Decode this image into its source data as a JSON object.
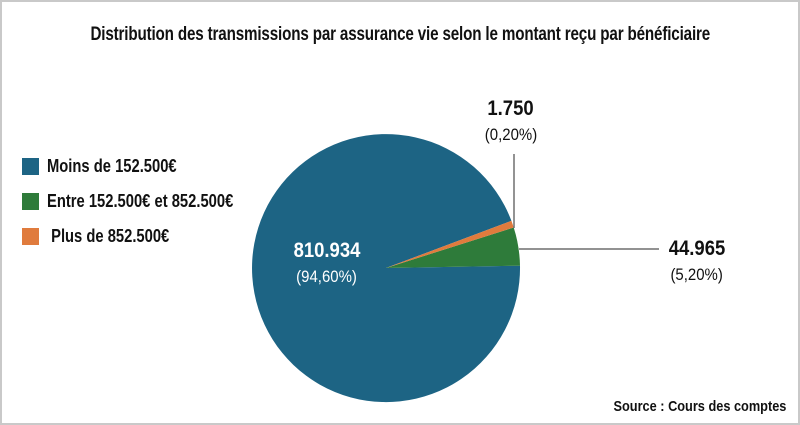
{
  "title": "Distribution des transmissions par assurance vie selon le montant reçu par bénéficiaire",
  "legend": {
    "items": [
      {
        "label": "Moins de 152.500€",
        "color": "#1d6484"
      },
      {
        "label": "Entre 152.500€ et 852.500€",
        "color": "#2e7b3a"
      },
      {
        "label": " Plus de 852.500€",
        "color": "#e07b3d"
      }
    ]
  },
  "source": "Source : Cours des comptes",
  "chart_data": {
    "type": "pie",
    "title": "Distribution des transmissions par assurance vie selon le montant reçu par bénéficiaire",
    "legend_position": "left",
    "slices": [
      {
        "label": "Moins de 152.500€",
        "value": 810934,
        "value_label": "810.934",
        "percent": 94.6,
        "pct_label": "(94,60%)",
        "color": "#1d6484"
      },
      {
        "label": "Entre 152.500€ et 852.500€",
        "value": 44965,
        "value_label": "44.965",
        "percent": 5.2,
        "pct_label": "(5,20%)",
        "color": "#2e7b3a"
      },
      {
        "label": "Plus de 852.500€",
        "value": 1750,
        "value_label": "1.750",
        "percent": 0.2,
        "pct_label": "(0,20%)",
        "color": "#e07b3d"
      }
    ]
  }
}
